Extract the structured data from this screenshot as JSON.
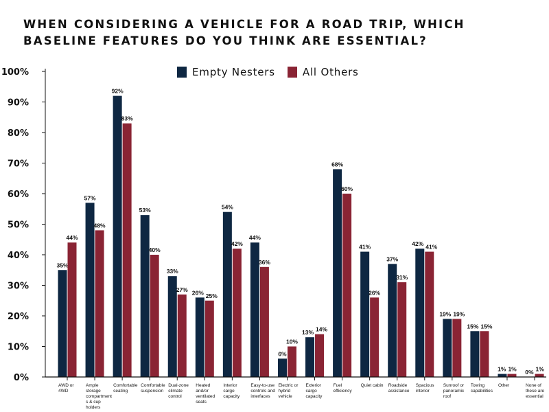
{
  "chart_data": {
    "type": "bar",
    "title": "WHEN CONSIDERING A VEHICLE FOR A ROAD TRIP, WHICH BASELINE FEATURES DO YOU THINK ARE ESSENTIAL?",
    "categories": [
      "AWD or 4WD",
      "Ample storage compartments & cup holders",
      "Comfortable seating",
      "Comfortable suspension",
      "Dual-zone climate control",
      "Heated and/or ventilated seats",
      "Interior cargo capacity",
      "Easy-to-use controls and interfaces",
      "Electric or hybrid vehicle",
      "Exterior cargo capacity",
      "Fuel efficiency",
      "Quiet cabin",
      "Roadside assistance",
      "Spacious interior",
      "Sunroof or panoramic roof",
      "Towing capabilities",
      "Other",
      "None of these are essential"
    ],
    "series": [
      {
        "name": "Empty Nesters",
        "color": "#0e2742",
        "values": [
          35,
          57,
          92,
          53,
          33,
          26,
          54,
          44,
          6,
          13,
          68,
          41,
          37,
          42,
          19,
          15,
          1,
          0
        ]
      },
      {
        "name": "All Others",
        "color": "#8a2434",
        "values": [
          44,
          48,
          83,
          40,
          27,
          25,
          42,
          36,
          10,
          14,
          60,
          26,
          31,
          41,
          19,
          15,
          1,
          1
        ]
      }
    ],
    "ylim": [
      0,
      100
    ],
    "yticks": [
      "0%",
      "10%",
      "20%",
      "30%",
      "40%",
      "50%",
      "60%",
      "70%",
      "80%",
      "90%",
      "100%"
    ],
    "legend": "top-center",
    "grid": false
  }
}
